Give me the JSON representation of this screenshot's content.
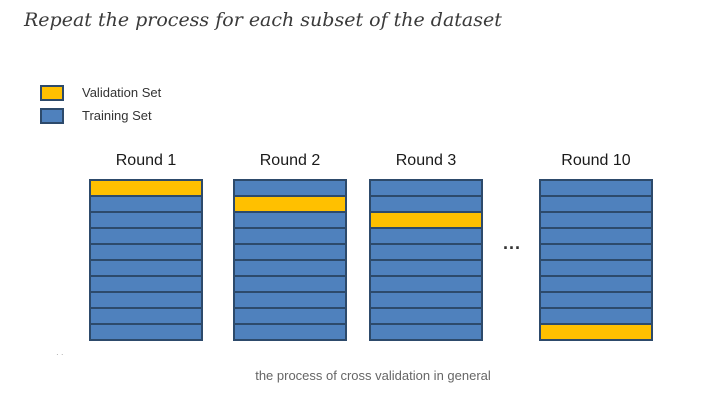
{
  "title": "Repeat the process for each subset of the dataset",
  "legend": {
    "items": [
      {
        "label": "Validation Set",
        "color": "#ffc000"
      },
      {
        "label": "Training Set",
        "color": "#4f81bd"
      }
    ]
  },
  "colors": {
    "validation": "#ffc000",
    "training": "#4f81bd",
    "border": "#2d4a6b"
  },
  "folds_per_round": 10,
  "rounds": [
    {
      "label": "Round 1",
      "validation_fold": 1
    },
    {
      "label": "Round 2",
      "validation_fold": 2
    },
    {
      "label": "Round 3",
      "validation_fold": 3
    },
    {
      "label": "Round 10",
      "validation_fold": 10
    }
  ],
  "ellipsis": "...",
  "caption": "the process of cross validation in general"
}
